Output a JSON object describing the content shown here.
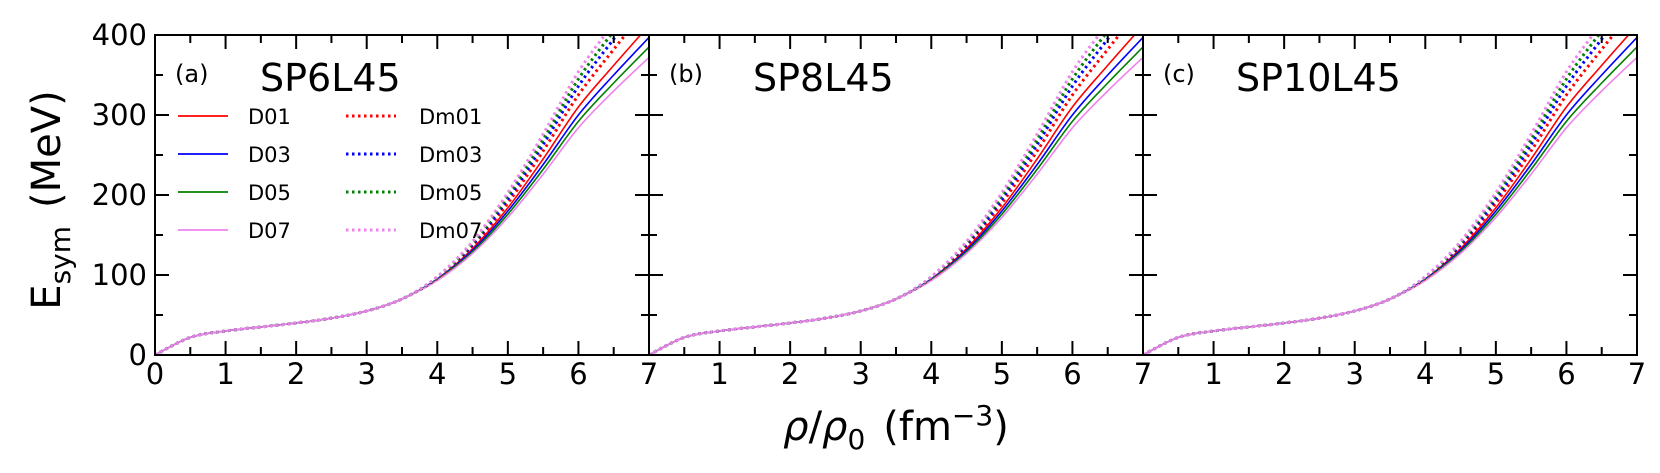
{
  "chart_data": [
    {
      "type": "line",
      "panel_label": "(a)",
      "title": "SP6L45",
      "xlim": [
        0,
        7
      ],
      "ylim": [
        0,
        400
      ],
      "xticks": [
        "0",
        "1",
        "2",
        "3",
        "4",
        "5",
        "6",
        "7"
      ],
      "yticks": [
        "0",
        "100",
        "200",
        "300",
        "400"
      ],
      "x": [
        0,
        0.5,
        1,
        1.5,
        2,
        2.5,
        3,
        3.5,
        4,
        4.5,
        5,
        5.5,
        6,
        6.5,
        7
      ],
      "series": [
        {
          "name": "D01",
          "color": "#ff0000",
          "style": "solid",
          "values": [
            0,
            22,
            30,
            35,
            40,
            46,
            55,
            70,
            95,
            133,
            184,
            245,
            310,
            362,
            412
          ]
        },
        {
          "name": "D03",
          "color": "#0000ff",
          "style": "solid",
          "values": [
            0,
            22,
            30,
            35,
            40,
            46,
            55,
            70,
            95,
            131,
            180,
            238,
            300,
            350,
            397
          ]
        },
        {
          "name": "D05",
          "color": "#008000",
          "style": "solid",
          "values": [
            0,
            22,
            30,
            35,
            40,
            46,
            55,
            70,
            94,
            129,
            176,
            232,
            292,
            340,
            385
          ]
        },
        {
          "name": "D07",
          "color": "#ee82ee",
          "style": "solid",
          "values": [
            0,
            22,
            30,
            35,
            40,
            46,
            55,
            70,
            93,
            127,
            172,
            226,
            284,
            330,
            372
          ]
        },
        {
          "name": "Dm01",
          "color": "#ff0000",
          "style": "dotted",
          "values": [
            0,
            22,
            30,
            35,
            40,
            46,
            55,
            70,
            96,
            136,
            190,
            255,
            325,
            382,
            437
          ]
        },
        {
          "name": "Dm03",
          "color": "#0000ff",
          "style": "dotted",
          "values": [
            0,
            22,
            30,
            35,
            40,
            46,
            55,
            70,
            97,
            138,
            195,
            263,
            336,
            395,
            452
          ]
        },
        {
          "name": "Dm05",
          "color": "#008000",
          "style": "dotted",
          "values": [
            0,
            22,
            30,
            35,
            40,
            46,
            55,
            70,
            97,
            140,
            199,
            269,
            345,
            405,
            463
          ]
        },
        {
          "name": "Dm07",
          "color": "#ee82ee",
          "style": "dotted",
          "values": [
            0,
            22,
            30,
            35,
            40,
            46,
            55,
            70,
            98,
            142,
            203,
            276,
            354,
            415,
            475
          ]
        }
      ]
    },
    {
      "type": "line",
      "panel_label": "(b)",
      "title": "SP8L45",
      "xlim": [
        0,
        7
      ],
      "ylim": [
        0,
        400
      ],
      "xticks": [
        "1",
        "2",
        "3",
        "4",
        "5",
        "6",
        "7"
      ],
      "yticks": [
        "0",
        "100",
        "200",
        "300",
        "400"
      ],
      "x": [
        0,
        0.5,
        1,
        1.5,
        2,
        2.5,
        3,
        3.5,
        4,
        4.5,
        5,
        5.5,
        6,
        6.5,
        7
      ],
      "series": [
        {
          "name": "D01",
          "color": "#ff0000",
          "style": "solid",
          "values": [
            0,
            22,
            30,
            35,
            40,
            46,
            55,
            70,
            95,
            133,
            184,
            245,
            310,
            362,
            412
          ]
        },
        {
          "name": "D03",
          "color": "#0000ff",
          "style": "solid",
          "values": [
            0,
            22,
            30,
            35,
            40,
            46,
            55,
            70,
            95,
            131,
            180,
            238,
            300,
            350,
            397
          ]
        },
        {
          "name": "D05",
          "color": "#008000",
          "style": "solid",
          "values": [
            0,
            22,
            30,
            35,
            40,
            46,
            55,
            70,
            94,
            129,
            176,
            232,
            292,
            340,
            385
          ]
        },
        {
          "name": "D07",
          "color": "#ee82ee",
          "style": "solid",
          "values": [
            0,
            22,
            30,
            35,
            40,
            46,
            55,
            70,
            93,
            127,
            172,
            226,
            284,
            330,
            372
          ]
        },
        {
          "name": "Dm01",
          "color": "#ff0000",
          "style": "dotted",
          "values": [
            0,
            22,
            30,
            35,
            40,
            46,
            55,
            70,
            96,
            136,
            190,
            255,
            325,
            382,
            437
          ]
        },
        {
          "name": "Dm03",
          "color": "#0000ff",
          "style": "dotted",
          "values": [
            0,
            22,
            30,
            35,
            40,
            46,
            55,
            70,
            97,
            138,
            195,
            263,
            336,
            395,
            452
          ]
        },
        {
          "name": "Dm05",
          "color": "#008000",
          "style": "dotted",
          "values": [
            0,
            22,
            30,
            35,
            40,
            46,
            55,
            70,
            97,
            140,
            199,
            269,
            345,
            405,
            463
          ]
        },
        {
          "name": "Dm07",
          "color": "#ee82ee",
          "style": "dotted",
          "values": [
            0,
            22,
            30,
            35,
            40,
            46,
            55,
            70,
            98,
            142,
            203,
            276,
            354,
            415,
            475
          ]
        }
      ]
    },
    {
      "type": "line",
      "panel_label": "(c)",
      "title": "SP10L45",
      "xlim": [
        0,
        7
      ],
      "ylim": [
        0,
        400
      ],
      "xticks": [
        "1",
        "2",
        "3",
        "4",
        "5",
        "6",
        "7"
      ],
      "yticks": [
        "0",
        "100",
        "200",
        "300",
        "400"
      ],
      "x": [
        0,
        0.5,
        1,
        1.5,
        2,
        2.5,
        3,
        3.5,
        4,
        4.5,
        5,
        5.5,
        6,
        6.5,
        7
      ],
      "series": [
        {
          "name": "D01",
          "color": "#ff0000",
          "style": "solid",
          "values": [
            0,
            22,
            30,
            35,
            40,
            46,
            55,
            70,
            95,
            133,
            184,
            245,
            310,
            362,
            412
          ]
        },
        {
          "name": "D03",
          "color": "#0000ff",
          "style": "solid",
          "values": [
            0,
            22,
            30,
            35,
            40,
            46,
            55,
            70,
            95,
            131,
            180,
            238,
            300,
            350,
            397
          ]
        },
        {
          "name": "D05",
          "color": "#008000",
          "style": "solid",
          "values": [
            0,
            22,
            30,
            35,
            40,
            46,
            55,
            70,
            94,
            129,
            176,
            232,
            292,
            340,
            385
          ]
        },
        {
          "name": "D07",
          "color": "#ee82ee",
          "style": "solid",
          "values": [
            0,
            22,
            30,
            35,
            40,
            46,
            55,
            70,
            93,
            127,
            172,
            226,
            284,
            330,
            372
          ]
        },
        {
          "name": "Dm01",
          "color": "#ff0000",
          "style": "dotted",
          "values": [
            0,
            22,
            30,
            35,
            40,
            46,
            55,
            70,
            96,
            136,
            190,
            255,
            325,
            382,
            437
          ]
        },
        {
          "name": "Dm03",
          "color": "#0000ff",
          "style": "dotted",
          "values": [
            0,
            22,
            30,
            35,
            40,
            46,
            55,
            70,
            97,
            138,
            195,
            263,
            336,
            395,
            452
          ]
        },
        {
          "name": "Dm05",
          "color": "#008000",
          "style": "dotted",
          "values": [
            0,
            22,
            30,
            35,
            40,
            46,
            55,
            70,
            97,
            140,
            199,
            269,
            345,
            405,
            463
          ]
        },
        {
          "name": "Dm07",
          "color": "#ee82ee",
          "style": "dotted",
          "values": [
            0,
            22,
            30,
            35,
            40,
            46,
            55,
            70,
            98,
            142,
            203,
            276,
            354,
            415,
            475
          ]
        }
      ]
    }
  ],
  "y_label": {
    "main": "E",
    "sub": "sym",
    "unit": "(MeV)"
  },
  "x_label": {
    "rho": "ρ",
    "slash": "/",
    "rho0": "ρ",
    "rho0_sub": "0",
    "unit": "(fm",
    "unit_exp": "−3",
    "unit_close": ")"
  },
  "legend": {
    "location": "upper-left of panel (a)",
    "entries": [
      "D01",
      "D03",
      "D05",
      "D07",
      "Dm01",
      "Dm03",
      "Dm05",
      "Dm07"
    ]
  }
}
